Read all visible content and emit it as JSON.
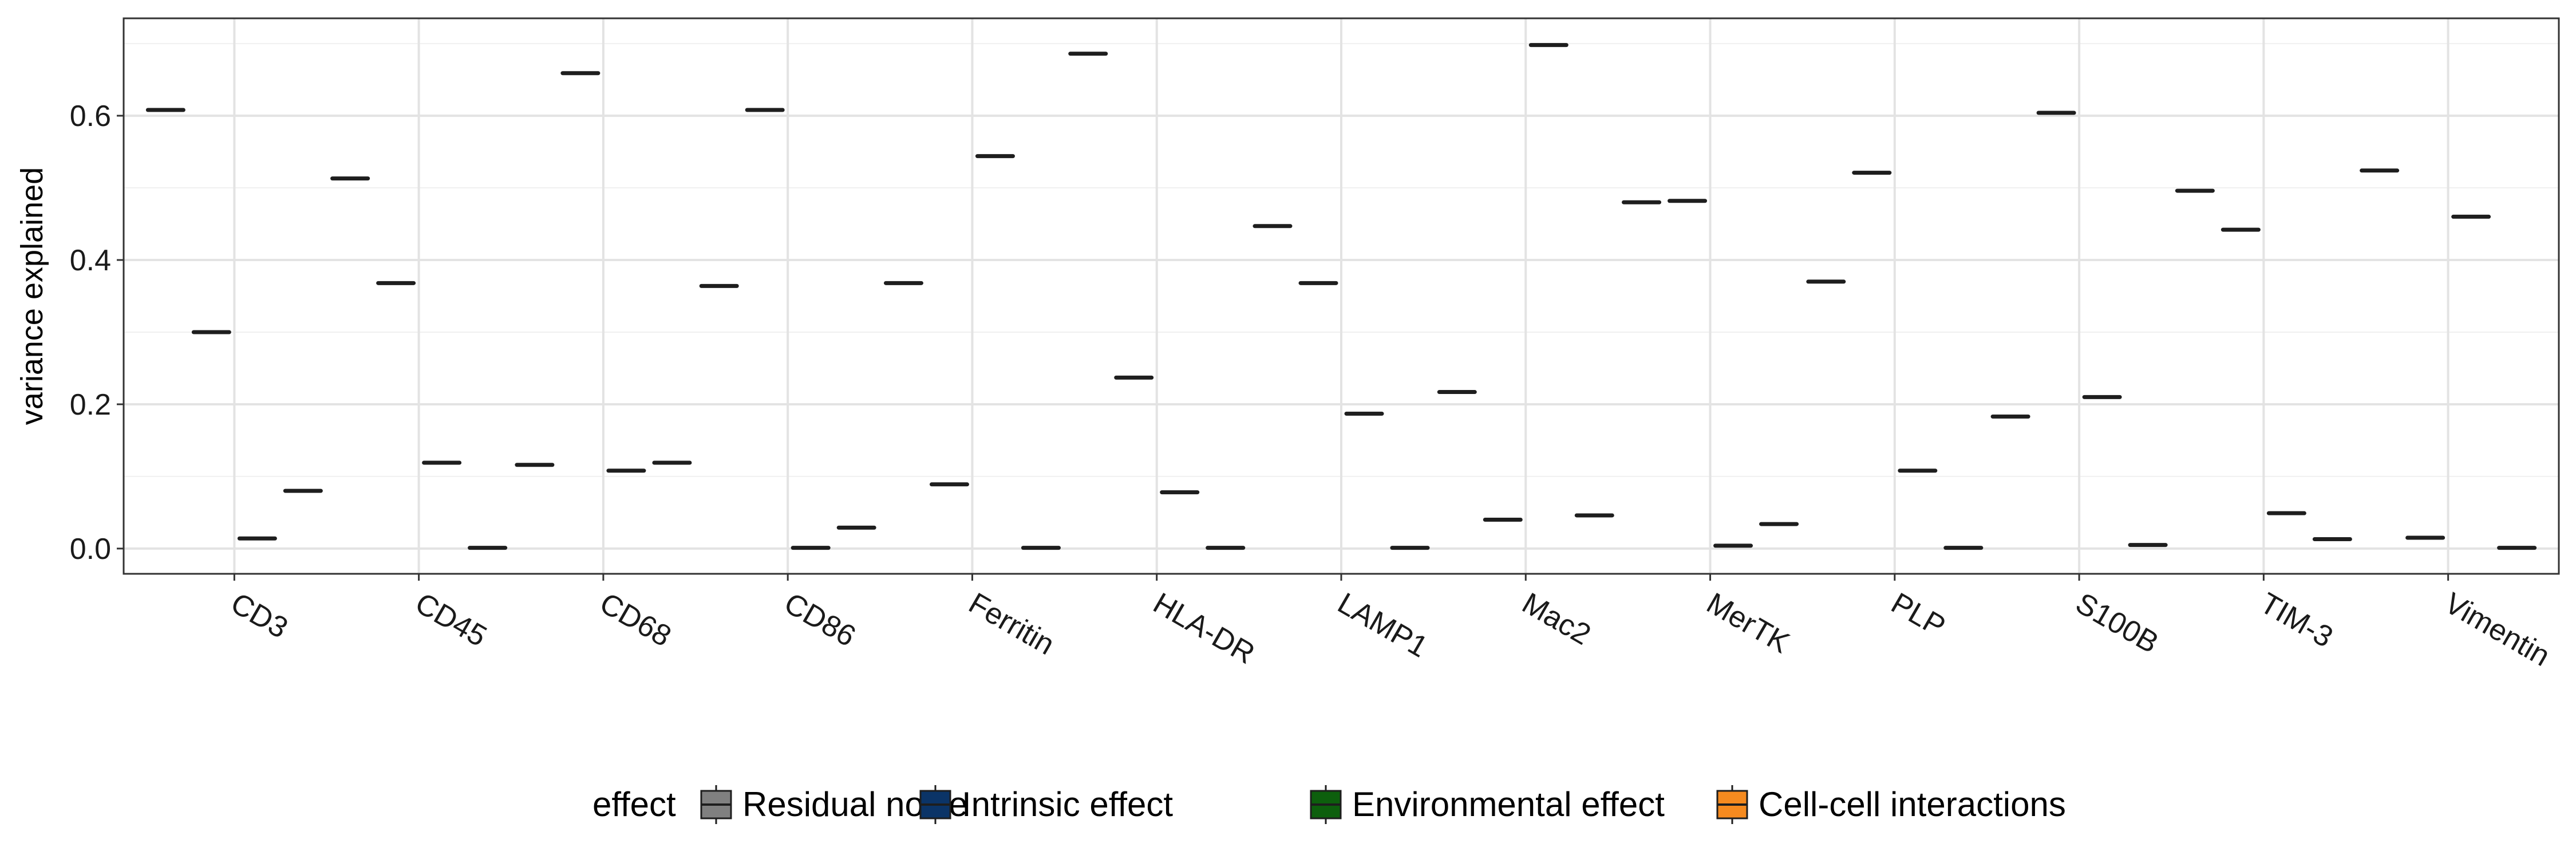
{
  "chart_data": {
    "type": "boxplot",
    "ylabel": "variance explained",
    "xlabel": "",
    "ylim": [
      -0.035,
      0.735
    ],
    "yticks": [
      0.0,
      0.2,
      0.4,
      0.6
    ],
    "ytick_labels": [
      "0.0",
      "0.2",
      "0.4",
      "0.6"
    ],
    "grid": true,
    "legend_position": "bottom",
    "legend_title": "effect",
    "categories": [
      "CD3",
      "CD45",
      "CD68",
      "CD86",
      "Ferritin",
      "HLA-DR",
      "LAMP1",
      "Mac2",
      "MerTK",
      "PLP",
      "S100B",
      "TIM-3",
      "Vimentin"
    ],
    "series": [
      {
        "name": "Residual noise",
        "color": "#808080",
        "values": [
          0.608,
          0.513,
          0.116,
          0.364,
          0.368,
          0.686,
          0.447,
          0.217,
          0.48,
          0.37,
          0.183,
          0.496,
          0.524
        ]
      },
      {
        "name": "Intrinsic effect",
        "color": "#0b3467",
        "values": [
          0.3,
          0.368,
          0.659,
          0.608,
          0.089,
          0.237,
          0.368,
          0.04,
          0.482,
          0.521,
          0.604,
          0.442,
          0.015
        ]
      },
      {
        "name": "Environmental effect",
        "color": "#0d5f0d",
        "values": [
          0.014,
          0.119,
          0.108,
          0.001,
          0.544,
          0.078,
          0.187,
          0.698,
          0.004,
          0.108,
          0.21,
          0.049,
          0.46
        ]
      },
      {
        "name": "Cell-cell interactions",
        "color": "#f58a1f",
        "values": [
          0.08,
          0.001,
          0.119,
          0.029,
          0.001,
          0.001,
          0.001,
          0.046,
          0.034,
          0.001,
          0.005,
          0.013,
          0.001
        ]
      }
    ]
  }
}
